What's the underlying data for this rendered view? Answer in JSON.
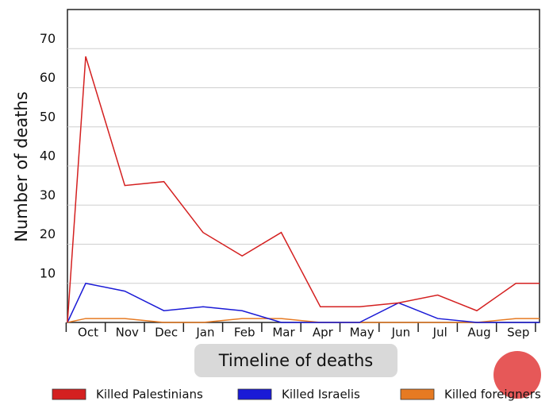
{
  "chart_data": {
    "type": "line",
    "y_label": "Number of deaths",
    "x_label": "Timeline of deaths",
    "categories": [
      null,
      "Oct",
      "Nov",
      "Dec",
      "Jan",
      "Feb",
      "Mar",
      "Apr",
      "May",
      "Jun",
      "Jul",
      "Aug",
      "Sep",
      null
    ],
    "series": [
      {
        "name": "Killed Palestinians",
        "color": "#d42020",
        "values": [
          0,
          68,
          35,
          36,
          23,
          17,
          23,
          4,
          4,
          5,
          7,
          3,
          10,
          10
        ]
      },
      {
        "name": "Killed Israelis",
        "color": "#1a1ad6",
        "values": [
          0,
          10,
          8,
          3,
          4,
          3,
          0,
          0,
          0,
          5,
          1,
          0,
          0,
          0
        ]
      },
      {
        "name": "Killed foreigners",
        "color": "#e67a22",
        "values": [
          0,
          1,
          1,
          0,
          0,
          1,
          1,
          0,
          0,
          0,
          0,
          0,
          1,
          1
        ]
      }
    ],
    "ylim": [
      0,
      80
    ],
    "yticks": [
      10,
      20,
      30,
      40,
      50,
      60,
      70
    ],
    "grid": true,
    "legend": "bottom"
  }
}
